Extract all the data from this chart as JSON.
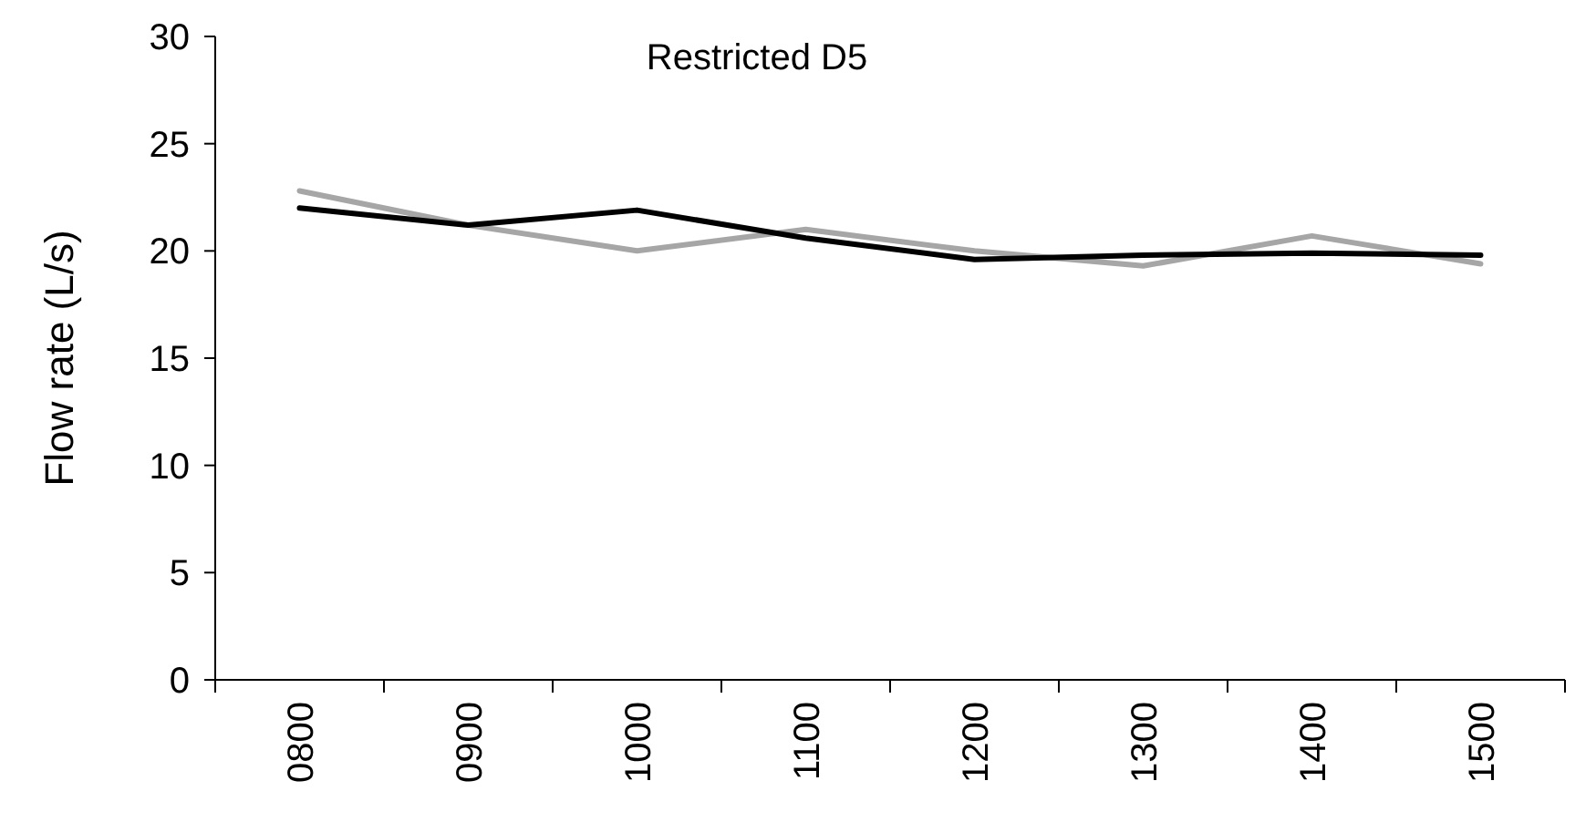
{
  "chart_data": {
    "type": "line",
    "title": "Restricted D5",
    "ylabel": "Flow rate (L/s)",
    "categories": [
      "0800",
      "0900",
      "1000",
      "1100",
      "1200",
      "1300",
      "1400",
      "1500"
    ],
    "series": [
      {
        "color": "#a6a6a6",
        "values": [
          22.8,
          21.2,
          20.0,
          21.0,
          20.0,
          19.3,
          20.7,
          19.4
        ]
      },
      {
        "color": "#000000",
        "values": [
          22.0,
          21.2,
          21.9,
          20.6,
          19.6,
          19.8,
          19.9,
          19.8
        ]
      }
    ],
    "ylim": [
      0,
      30
    ],
    "yticks": [
      0,
      5,
      10,
      15,
      20,
      25,
      30
    ],
    "grid": false,
    "marker": "none",
    "line_style": "solid"
  }
}
